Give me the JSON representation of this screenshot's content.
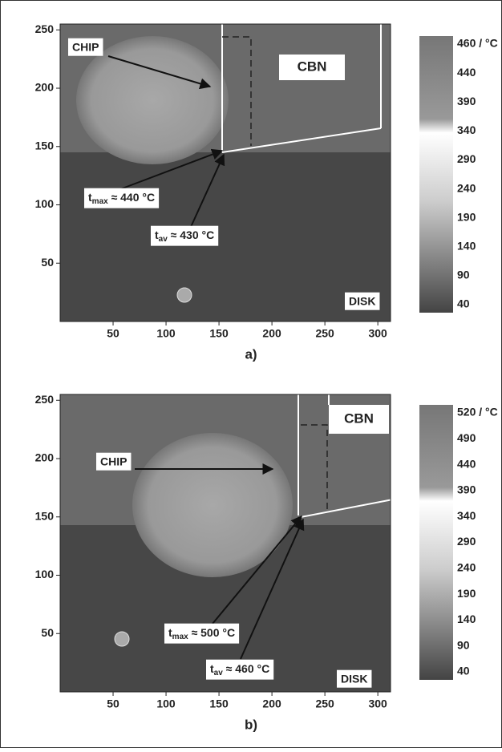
{
  "panels": [
    {
      "label": "a)",
      "xlim": [
        0,
        312
      ],
      "ylim": [
        0,
        255
      ],
      "xticks": [
        50,
        100,
        150,
        200,
        250,
        300
      ],
      "yticks": [
        250,
        200,
        150,
        100,
        50
      ],
      "colorbar": [
        "460 / °C",
        "440",
        "390",
        "340",
        "290",
        "240",
        "190",
        "140",
        "90",
        "40"
      ],
      "annotations": {
        "chip": "CHIP",
        "cbn": "CBN",
        "disk": "DISK",
        "tmax": {
          "t": "t",
          "sub": "max",
          "rest": " ≈ 440 °C"
        },
        "tav": {
          "t": "t",
          "sub": "av",
          "rest": " ≈ 430 °C"
        }
      }
    },
    {
      "label": "b)",
      "xlim": [
        0,
        312
      ],
      "ylim": [
        0,
        255
      ],
      "xticks": [
        50,
        100,
        150,
        200,
        250,
        300
      ],
      "yticks": [
        250,
        200,
        150,
        100,
        50
      ],
      "colorbar": [
        "520 / °C",
        "490",
        "440",
        "390",
        "340",
        "290",
        "240",
        "190",
        "140",
        "90",
        "40"
      ],
      "annotations": {
        "chip": "CHIP",
        "cbn": "CBN",
        "disk": "DISK",
        "tmax": {
          "t": "t",
          "sub": "max",
          "rest": " ≈ 500 °C"
        },
        "tav": {
          "t": "t",
          "sub": "av",
          "rest": " ≈ 460 °C"
        }
      }
    }
  ]
}
